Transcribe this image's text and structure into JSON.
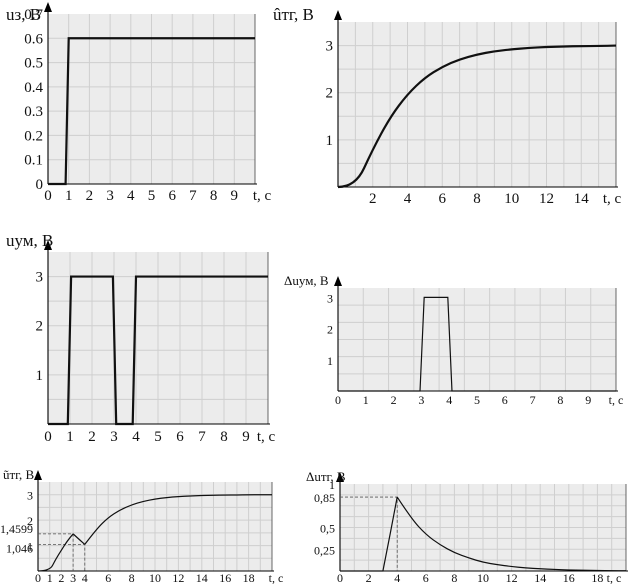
{
  "chart_data": [
    {
      "id": "c1",
      "type": "line",
      "ylabel": "uз, В",
      "xlabel": "t, с",
      "xlim": [
        0,
        10
      ],
      "ylim": [
        0,
        0.7
      ],
      "xticks": [
        "0",
        "1",
        "2",
        "3",
        "4",
        "5",
        "6",
        "7",
        "8",
        "9"
      ],
      "yticks": [
        "0",
        "0.1",
        "0.2",
        "0.3",
        "0.4",
        "0.5",
        "0.6",
        "0.7"
      ],
      "grid": true,
      "series": [
        {
          "x": [
            0,
            0.85,
            1.0,
            10
          ],
          "y": [
            0,
            0,
            0.6,
            0.6
          ]
        }
      ]
    },
    {
      "id": "c2",
      "type": "line",
      "ylabel": "ûтг, В",
      "xlabel": "t, с",
      "xlim": [
        0,
        16
      ],
      "ylim": [
        0,
        3.5
      ],
      "xticks": [
        "2",
        "4",
        "6",
        "8",
        "10",
        "12",
        "14"
      ],
      "yticks": [
        "1",
        "2",
        "3"
      ],
      "grid": true,
      "series": [
        {
          "x": [
            0,
            1,
            2,
            3,
            4,
            5,
            6,
            7,
            8,
            9,
            10,
            11,
            12,
            13,
            14,
            15,
            16
          ],
          "y": [
            0,
            0,
            0.8,
            1.48,
            1.97,
            2.32,
            2.55,
            2.71,
            2.81,
            2.88,
            2.92,
            2.95,
            2.97,
            2.98,
            2.99,
            2.99,
            3.0
          ]
        }
      ]
    },
    {
      "id": "c3",
      "type": "line",
      "ylabel": "uум, В",
      "xlabel": "t, с",
      "xlim": [
        0,
        10
      ],
      "ylim": [
        0,
        3.5
      ],
      "xticks": [
        "0",
        "1",
        "2",
        "3",
        "4",
        "5",
        "6",
        "7",
        "8",
        "9"
      ],
      "yticks": [
        "1",
        "2",
        "3"
      ],
      "grid": true,
      "series": [
        {
          "x": [
            0,
            0.9,
            1.05,
            2.95,
            3.1,
            3.85,
            4.0,
            10
          ],
          "y": [
            0,
            0,
            3,
            3,
            0,
            0,
            3,
            3
          ]
        }
      ]
    },
    {
      "id": "c4",
      "type": "line",
      "ylabel": "Δuум, В",
      "xlabel": "t, с",
      "xlim": [
        0,
        10
      ],
      "ylim": [
        0,
        3.3
      ],
      "xticks": [
        "0",
        "1",
        "2",
        "3",
        "4",
        "5",
        "6",
        "7",
        "8",
        "9"
      ],
      "yticks": [
        "1",
        "2",
        "3"
      ],
      "grid": true,
      "series": [
        {
          "x": [
            0,
            2.95,
            3.1,
            3.95,
            4.1,
            10
          ],
          "y": [
            0,
            0,
            3,
            3,
            0,
            0
          ]
        }
      ]
    },
    {
      "id": "c5",
      "type": "line",
      "ylabel": "ũтг, В",
      "xlabel": "t, с",
      "xlim": [
        0,
        20
      ],
      "ylim": [
        0,
        3.5
      ],
      "xticks": [
        "0",
        "1",
        "2",
        "3",
        "4",
        "6",
        "8",
        "10",
        "12",
        "14",
        "16",
        "18"
      ],
      "yticks": [
        "1",
        "2",
        "3"
      ],
      "annotations": [
        "1,4599",
        "1,046"
      ],
      "grid": true,
      "series": [
        {
          "x": [
            0,
            1,
            1.5,
            2,
            2.5,
            3,
            3.5,
            4,
            5,
            6,
            7,
            8,
            9,
            10,
            11,
            12,
            13,
            14,
            15,
            16,
            17,
            18,
            19,
            20
          ],
          "y": [
            0,
            0,
            0.45,
            0.82,
            1.18,
            1.4599,
            1.25,
            1.046,
            1.65,
            2.1,
            2.4,
            2.6,
            2.74,
            2.83,
            2.89,
            2.93,
            2.95,
            2.97,
            2.98,
            2.99,
            2.99,
            3.0,
            3.0,
            3.0
          ]
        }
      ]
    },
    {
      "id": "c6",
      "type": "line",
      "ylabel": "Δuтг, В",
      "xlabel": "t, с",
      "xlim": [
        0,
        20
      ],
      "ylim": [
        0,
        1.0
      ],
      "xticks": [
        "0",
        "2",
        "4",
        "6",
        "8",
        "10",
        "12",
        "14",
        "16",
        "18"
      ],
      "yticks": [
        "0,25",
        "0,5",
        "0,85",
        "1"
      ],
      "grid": true,
      "series": [
        {
          "x": [
            0,
            3,
            3.5,
            4,
            5,
            6,
            7,
            8,
            9,
            10,
            11,
            12,
            13,
            14,
            15,
            16,
            17,
            18,
            19,
            20
          ],
          "y": [
            0,
            0,
            0.42,
            0.85,
            0.6,
            0.42,
            0.3,
            0.21,
            0.15,
            0.1,
            0.073,
            0.051,
            0.036,
            0.025,
            0.018,
            0.012,
            0.009,
            0.006,
            0.004,
            0.003
          ]
        }
      ]
    }
  ]
}
